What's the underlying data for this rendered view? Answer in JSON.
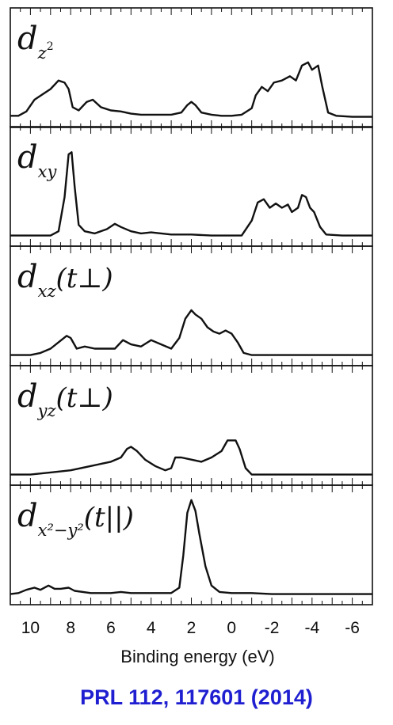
{
  "chart_data": {
    "type": "line",
    "xlabel": "Binding energy (eV)",
    "xlim": [
      11.0,
      -7.0
    ],
    "xticks": [
      10,
      8,
      6,
      4,
      2,
      0,
      -2,
      -4,
      -6
    ],
    "xtick_labels": [
      "10",
      "8",
      "6",
      "4",
      "2",
      "0",
      "-2",
      "-4",
      "-6"
    ],
    "ylim": [
      0,
      1
    ],
    "grid": false,
    "panels": [
      {
        "label_main": "d",
        "label_sub": "z",
        "label_sup": "2",
        "label_extra": "",
        "points": [
          [
            11.0,
            0.05
          ],
          [
            10.6,
            0.05
          ],
          [
            10.2,
            0.09
          ],
          [
            9.8,
            0.2
          ],
          [
            9.4,
            0.25
          ],
          [
            9.0,
            0.3
          ],
          [
            8.6,
            0.38
          ],
          [
            8.3,
            0.36
          ],
          [
            8.1,
            0.3
          ],
          [
            7.9,
            0.13
          ],
          [
            7.6,
            0.1
          ],
          [
            7.2,
            0.18
          ],
          [
            6.9,
            0.2
          ],
          [
            6.5,
            0.13
          ],
          [
            6.0,
            0.1
          ],
          [
            5.5,
            0.09
          ],
          [
            5.0,
            0.07
          ],
          [
            4.5,
            0.06
          ],
          [
            4.0,
            0.06
          ],
          [
            3.5,
            0.06
          ],
          [
            3.0,
            0.06
          ],
          [
            2.5,
            0.08
          ],
          [
            2.2,
            0.15
          ],
          [
            2.0,
            0.18
          ],
          [
            1.8,
            0.15
          ],
          [
            1.5,
            0.08
          ],
          [
            1.0,
            0.06
          ],
          [
            0.5,
            0.05
          ],
          [
            0.0,
            0.05
          ],
          [
            -0.5,
            0.06
          ],
          [
            -1.0,
            0.12
          ],
          [
            -1.2,
            0.24
          ],
          [
            -1.5,
            0.32
          ],
          [
            -1.8,
            0.28
          ],
          [
            -2.1,
            0.36
          ],
          [
            -2.5,
            0.38
          ],
          [
            -2.9,
            0.42
          ],
          [
            -3.2,
            0.38
          ],
          [
            -3.5,
            0.52
          ],
          [
            -3.8,
            0.55
          ],
          [
            -4.0,
            0.48
          ],
          [
            -4.3,
            0.52
          ],
          [
            -4.5,
            0.33
          ],
          [
            -4.8,
            0.08
          ],
          [
            -5.2,
            0.05
          ],
          [
            -6.0,
            0.04
          ],
          [
            -7.0,
            0.04
          ]
        ]
      },
      {
        "label_main": "d",
        "label_sub": "xy",
        "label_sup": "",
        "label_extra": "",
        "points": [
          [
            11.0,
            0.04
          ],
          [
            10.0,
            0.04
          ],
          [
            9.0,
            0.04
          ],
          [
            8.6,
            0.08
          ],
          [
            8.3,
            0.4
          ],
          [
            8.1,
            0.8
          ],
          [
            7.95,
            0.82
          ],
          [
            7.8,
            0.5
          ],
          [
            7.6,
            0.14
          ],
          [
            7.3,
            0.08
          ],
          [
            6.8,
            0.06
          ],
          [
            6.2,
            0.1
          ],
          [
            5.8,
            0.15
          ],
          [
            5.5,
            0.12
          ],
          [
            5.0,
            0.08
          ],
          [
            4.5,
            0.06
          ],
          [
            4.0,
            0.07
          ],
          [
            3.5,
            0.06
          ],
          [
            3.0,
            0.05
          ],
          [
            2.0,
            0.05
          ],
          [
            1.0,
            0.04
          ],
          [
            0.0,
            0.04
          ],
          [
            -0.5,
            0.04
          ],
          [
            -1.0,
            0.18
          ],
          [
            -1.3,
            0.35
          ],
          [
            -1.6,
            0.38
          ],
          [
            -1.9,
            0.3
          ],
          [
            -2.2,
            0.34
          ],
          [
            -2.5,
            0.3
          ],
          [
            -2.8,
            0.33
          ],
          [
            -3.0,
            0.26
          ],
          [
            -3.3,
            0.3
          ],
          [
            -3.5,
            0.42
          ],
          [
            -3.7,
            0.4
          ],
          [
            -3.9,
            0.3
          ],
          [
            -4.1,
            0.26
          ],
          [
            -4.4,
            0.12
          ],
          [
            -4.7,
            0.05
          ],
          [
            -5.5,
            0.04
          ],
          [
            -7.0,
            0.04
          ]
        ]
      },
      {
        "label_main": "d",
        "label_sub": "xz",
        "label_sup": "",
        "label_extra": "(t⊥)",
        "points": [
          [
            11.0,
            0.04
          ],
          [
            10.0,
            0.04
          ],
          [
            9.5,
            0.06
          ],
          [
            9.0,
            0.1
          ],
          [
            8.6,
            0.16
          ],
          [
            8.2,
            0.22
          ],
          [
            8.0,
            0.2
          ],
          [
            7.7,
            0.1
          ],
          [
            7.3,
            0.12
          ],
          [
            6.8,
            0.1
          ],
          [
            6.3,
            0.1
          ],
          [
            5.8,
            0.1
          ],
          [
            5.4,
            0.18
          ],
          [
            5.0,
            0.14
          ],
          [
            4.5,
            0.12
          ],
          [
            4.0,
            0.18
          ],
          [
            3.5,
            0.14
          ],
          [
            3.0,
            0.1
          ],
          [
            2.6,
            0.2
          ],
          [
            2.3,
            0.38
          ],
          [
            2.0,
            0.46
          ],
          [
            1.8,
            0.42
          ],
          [
            1.5,
            0.38
          ],
          [
            1.2,
            0.3
          ],
          [
            0.9,
            0.26
          ],
          [
            0.6,
            0.24
          ],
          [
            0.3,
            0.27
          ],
          [
            0.0,
            0.24
          ],
          [
            -0.3,
            0.16
          ],
          [
            -0.6,
            0.06
          ],
          [
            -1.0,
            0.04
          ],
          [
            -2.0,
            0.04
          ],
          [
            -3.0,
            0.04
          ],
          [
            -4.0,
            0.04
          ],
          [
            -5.0,
            0.04
          ],
          [
            -6.0,
            0.04
          ],
          [
            -7.0,
            0.04
          ]
        ]
      },
      {
        "label_main": "d",
        "label_sub": "yz",
        "label_sup": "",
        "label_extra": "(t⊥)",
        "points": [
          [
            11.0,
            0.04
          ],
          [
            10.0,
            0.04
          ],
          [
            9.0,
            0.06
          ],
          [
            8.0,
            0.08
          ],
          [
            7.0,
            0.12
          ],
          [
            6.0,
            0.16
          ],
          [
            5.5,
            0.2
          ],
          [
            5.2,
            0.28
          ],
          [
            5.0,
            0.3
          ],
          [
            4.7,
            0.26
          ],
          [
            4.3,
            0.18
          ],
          [
            3.8,
            0.12
          ],
          [
            3.3,
            0.08
          ],
          [
            3.0,
            0.1
          ],
          [
            2.8,
            0.2
          ],
          [
            2.5,
            0.2
          ],
          [
            2.0,
            0.18
          ],
          [
            1.5,
            0.16
          ],
          [
            1.0,
            0.2
          ],
          [
            0.5,
            0.26
          ],
          [
            0.2,
            0.36
          ],
          [
            -0.2,
            0.36
          ],
          [
            -0.4,
            0.28
          ],
          [
            -0.7,
            0.1
          ],
          [
            -1.0,
            0.04
          ],
          [
            -2.0,
            0.04
          ],
          [
            -4.0,
            0.04
          ],
          [
            -5.0,
            0.04
          ],
          [
            -6.0,
            0.04
          ],
          [
            -7.0,
            0.04
          ]
        ]
      },
      {
        "label_main": "d",
        "label_sub": "x²−y²",
        "label_sup": "",
        "label_extra": "(t||)",
        "points": [
          [
            11.0,
            0.04
          ],
          [
            10.6,
            0.05
          ],
          [
            10.2,
            0.08
          ],
          [
            9.8,
            0.1
          ],
          [
            9.5,
            0.08
          ],
          [
            9.1,
            0.12
          ],
          [
            8.8,
            0.09
          ],
          [
            8.5,
            0.09
          ],
          [
            8.1,
            0.1
          ],
          [
            7.8,
            0.07
          ],
          [
            7.0,
            0.05
          ],
          [
            6.0,
            0.05
          ],
          [
            5.5,
            0.06
          ],
          [
            5.0,
            0.05
          ],
          [
            4.0,
            0.05
          ],
          [
            3.0,
            0.05
          ],
          [
            2.6,
            0.1
          ],
          [
            2.4,
            0.4
          ],
          [
            2.2,
            0.8
          ],
          [
            2.0,
            0.92
          ],
          [
            1.8,
            0.82
          ],
          [
            1.6,
            0.6
          ],
          [
            1.3,
            0.3
          ],
          [
            1.0,
            0.12
          ],
          [
            0.6,
            0.06
          ],
          [
            0.0,
            0.05
          ],
          [
            -1.0,
            0.05
          ],
          [
            -2.0,
            0.04
          ],
          [
            -3.0,
            0.04
          ],
          [
            -4.0,
            0.04
          ],
          [
            -5.0,
            0.04
          ],
          [
            -6.0,
            0.04
          ],
          [
            -7.0,
            0.04
          ]
        ]
      }
    ]
  },
  "citation": "PRL 112, 117601 (2014)",
  "colors": {
    "line": "#111111",
    "citation": "#1f1fd1"
  }
}
